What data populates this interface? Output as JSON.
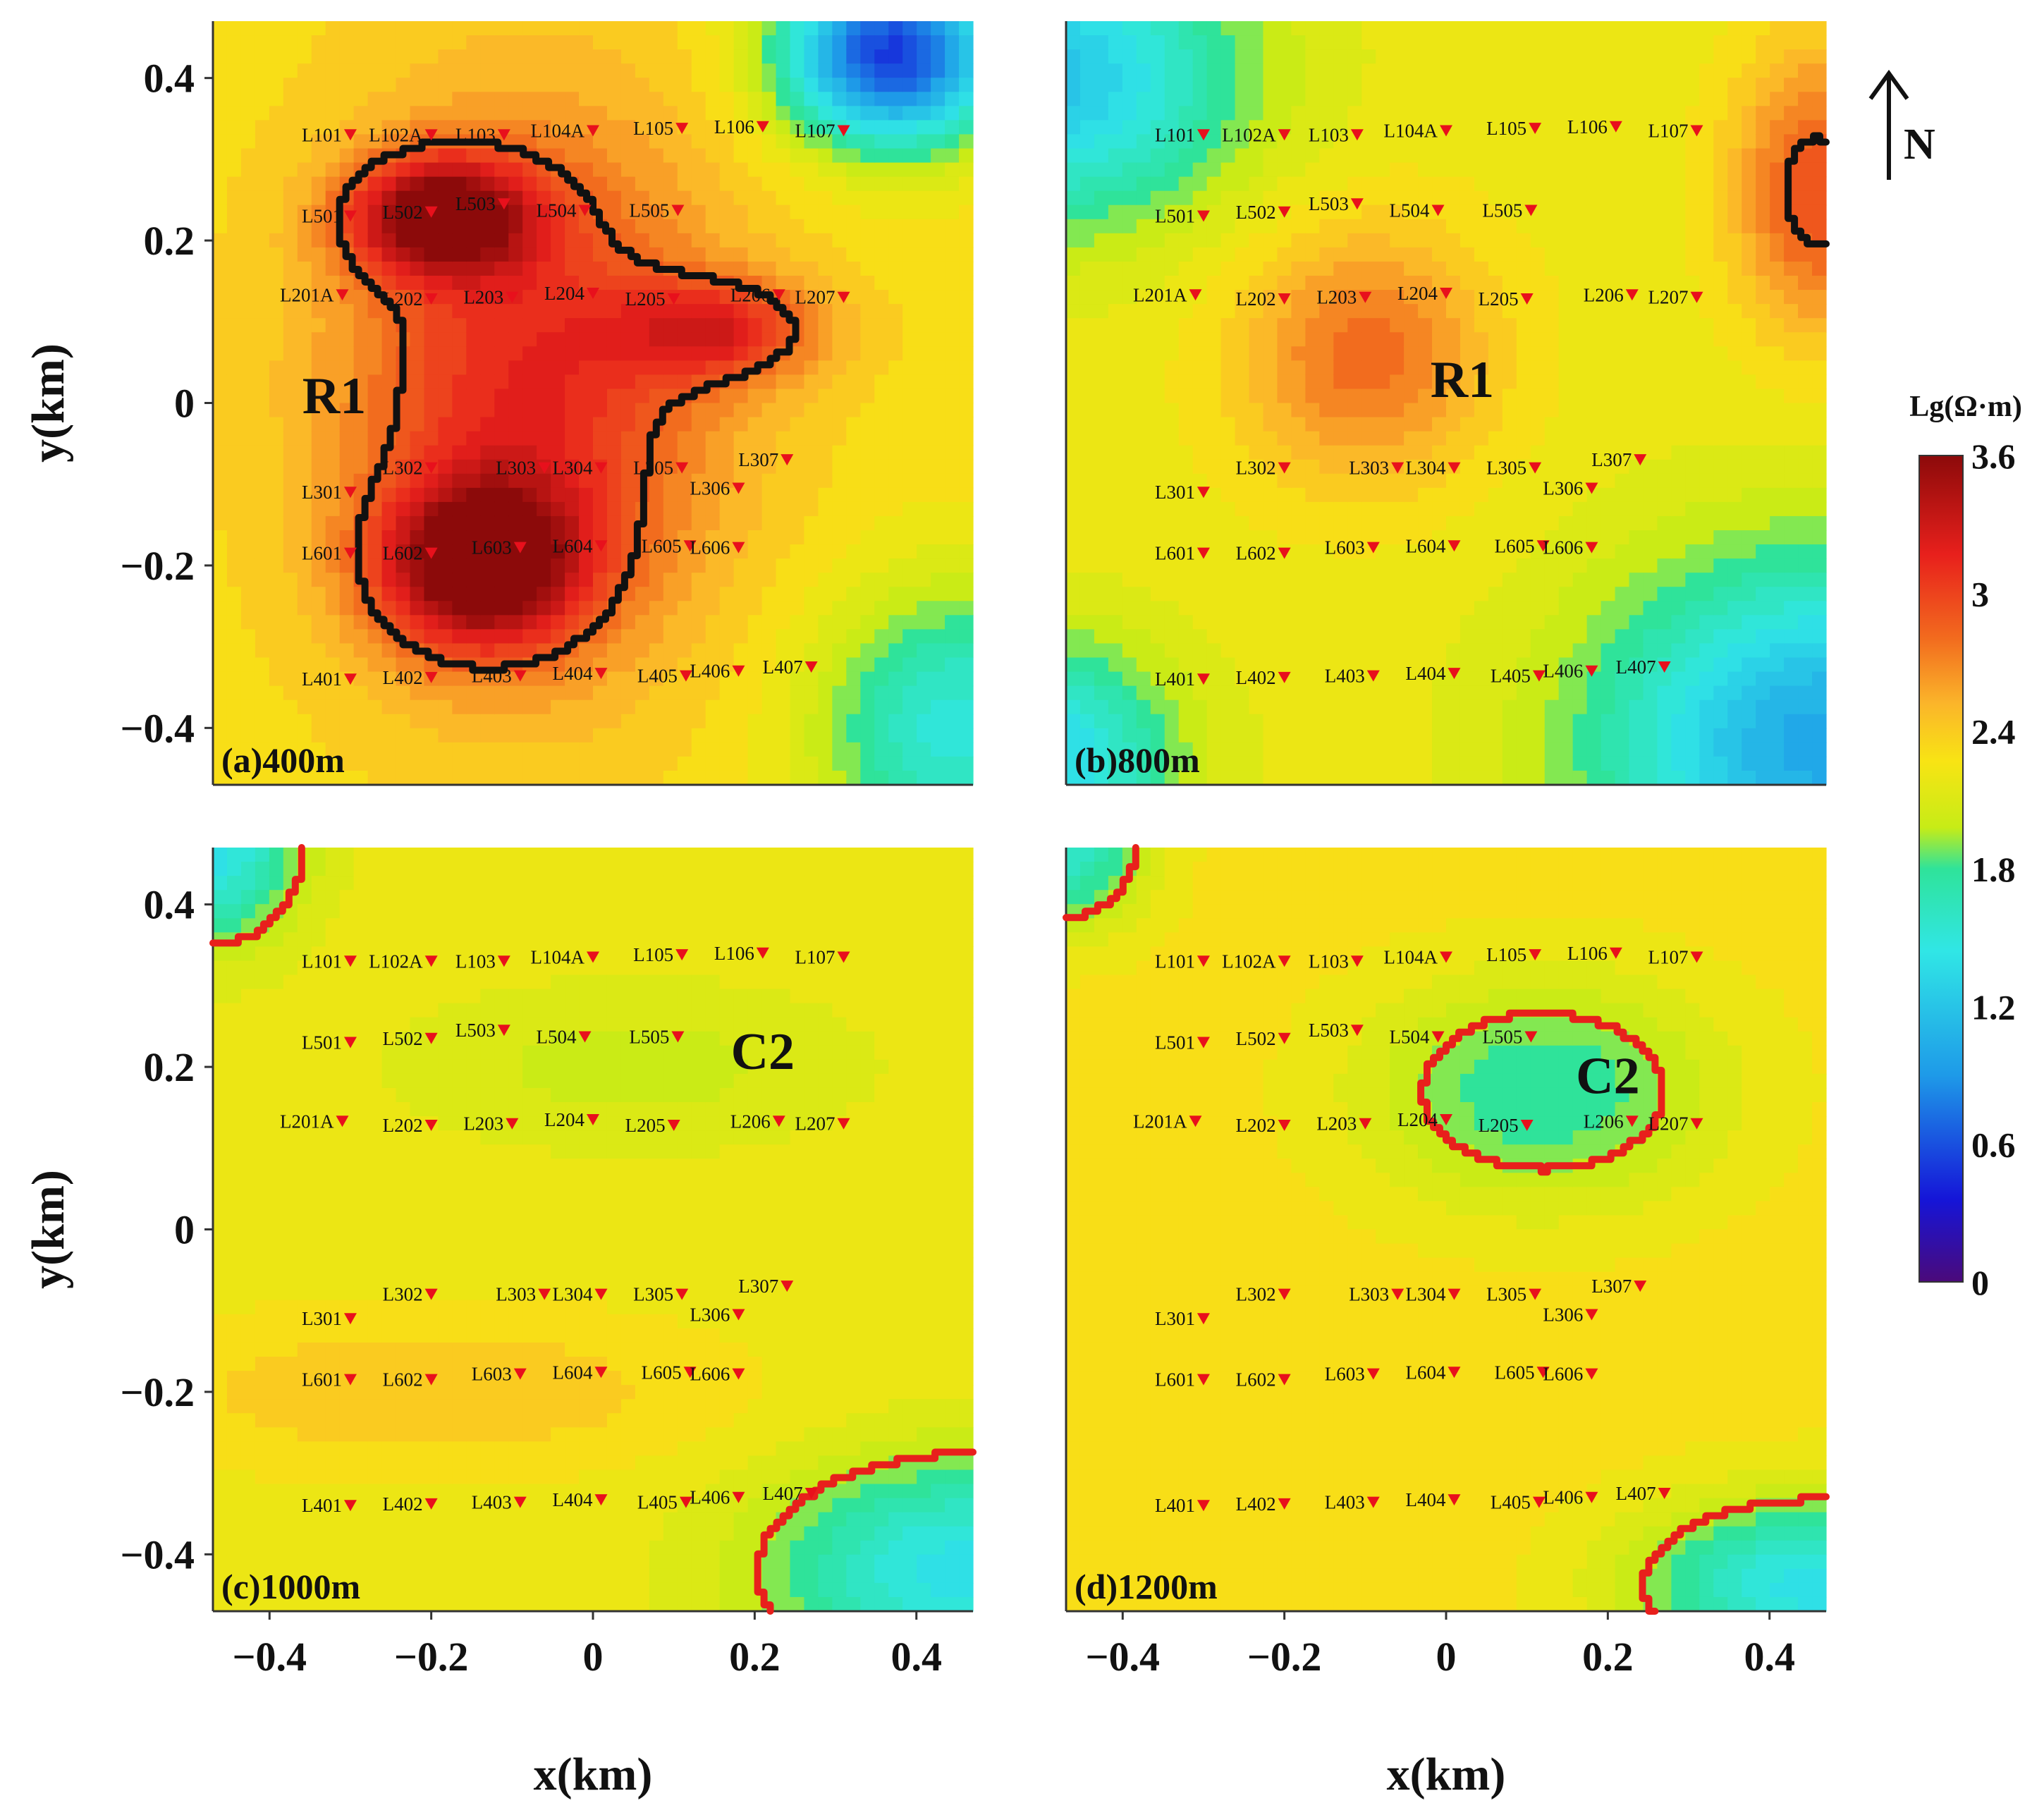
{
  "chart_data": {
    "type": "heatmap",
    "xlabel": "x(km)",
    "ylabel": "y(km)",
    "xlim": [
      -0.47,
      0.47
    ],
    "ylim": [
      -0.47,
      0.47
    ],
    "xticks": [
      "−0.4",
      "−0.2",
      "0",
      "0.2",
      "0.4"
    ],
    "yticks": [
      "0.4",
      "0.2",
      "0",
      "−0.2",
      "−0.4"
    ],
    "xtick_values": [
      -0.4,
      -0.2,
      0,
      0.2,
      0.4
    ],
    "ytick_values": [
      0.4,
      0.2,
      0,
      -0.2,
      -0.4
    ],
    "colorbar": {
      "title": "Lg(Ω·m)",
      "ticks": [
        "0",
        "0.6",
        "1.2",
        "1.8",
        "2.4",
        "3",
        "3.6"
      ],
      "tick_values": [
        0,
        0.6,
        1.2,
        1.8,
        2.4,
        3,
        3.6
      ],
      "range": [
        0,
        3.6
      ],
      "colors": [
        "#4b0a7a",
        "#1515d8",
        "#1e9ae8",
        "#30e6e6",
        "#2fe39a",
        "#c7ec16",
        "#f8e414",
        "#fbb52a",
        "#f26a1e",
        "#e8201c",
        "#8c0a0a"
      ]
    },
    "north_arrow": "N",
    "stations": [
      {
        "name": "L101",
        "x": -0.3,
        "y": 0.33
      },
      {
        "name": "L102A",
        "x": -0.2,
        "y": 0.33
      },
      {
        "name": "L103",
        "x": -0.11,
        "y": 0.33
      },
      {
        "name": "L104A",
        "x": 0.0,
        "y": 0.335
      },
      {
        "name": "L105",
        "x": 0.11,
        "y": 0.338
      },
      {
        "name": "L106",
        "x": 0.21,
        "y": 0.34
      },
      {
        "name": "L107",
        "x": 0.31,
        "y": 0.335
      },
      {
        "name": "L501",
        "x": -0.3,
        "y": 0.23
      },
      {
        "name": "L502",
        "x": -0.2,
        "y": 0.235
      },
      {
        "name": "L503",
        "x": -0.11,
        "y": 0.245
      },
      {
        "name": "L504",
        "x": -0.01,
        "y": 0.237
      },
      {
        "name": "L505",
        "x": 0.105,
        "y": 0.237
      },
      {
        "name": "L201A",
        "x": -0.31,
        "y": 0.133
      },
      {
        "name": "L202",
        "x": -0.2,
        "y": 0.128
      },
      {
        "name": "L203",
        "x": -0.1,
        "y": 0.13
      },
      {
        "name": "L204",
        "x": 0.0,
        "y": 0.135
      },
      {
        "name": "L205",
        "x": 0.1,
        "y": 0.128
      },
      {
        "name": "L206",
        "x": 0.23,
        "y": 0.133
      },
      {
        "name": "L207",
        "x": 0.31,
        "y": 0.13
      },
      {
        "name": "L302",
        "x": -0.2,
        "y": -0.08
      },
      {
        "name": "L303",
        "x": -0.06,
        "y": -0.08
      },
      {
        "name": "L304",
        "x": 0.01,
        "y": -0.08
      },
      {
        "name": "L305",
        "x": 0.11,
        "y": -0.08
      },
      {
        "name": "L307",
        "x": 0.24,
        "y": -0.07
      },
      {
        "name": "L301",
        "x": -0.3,
        "y": -0.11
      },
      {
        "name": "L306",
        "x": 0.18,
        "y": -0.105
      },
      {
        "name": "L601",
        "x": -0.3,
        "y": -0.185
      },
      {
        "name": "L602",
        "x": -0.2,
        "y": -0.185
      },
      {
        "name": "L603",
        "x": -0.09,
        "y": -0.178
      },
      {
        "name": "L604",
        "x": 0.01,
        "y": -0.176
      },
      {
        "name": "L605",
        "x": 0.12,
        "y": -0.176
      },
      {
        "name": "L606",
        "x": 0.18,
        "y": -0.178
      },
      {
        "name": "L401",
        "x": -0.3,
        "y": -0.34
      },
      {
        "name": "L402",
        "x": -0.2,
        "y": -0.338
      },
      {
        "name": "L403",
        "x": -0.09,
        "y": -0.336
      },
      {
        "name": "L404",
        "x": 0.01,
        "y": -0.333
      },
      {
        "name": "L405",
        "x": 0.115,
        "y": -0.336
      },
      {
        "name": "L406",
        "x": 0.18,
        "y": -0.33
      },
      {
        "name": "L407",
        "x": 0.27,
        "y": -0.325
      }
    ],
    "panels": [
      {
        "label": "(a)400m",
        "anomaly": "R1",
        "anomaly_pos": [
          -0.32,
          0.01
        ],
        "contour_color": "#111111",
        "background_value": 2.3,
        "blobs": [
          {
            "x": -0.08,
            "y": 0.02,
            "rx": 0.3,
            "ry": 0.42,
            "v": 3.15
          },
          {
            "x": -0.19,
            "y": 0.23,
            "rx": 0.14,
            "ry": 0.09,
            "v": 3.55
          },
          {
            "x": -0.14,
            "y": -0.2,
            "rx": 0.16,
            "ry": 0.13,
            "v": 3.55
          },
          {
            "x": 0.16,
            "y": 0.09,
            "rx": 0.16,
            "ry": 0.08,
            "v": 3.0
          },
          {
            "x": 0.37,
            "y": 0.43,
            "rx": 0.17,
            "ry": 0.14,
            "v": 0.5
          },
          {
            "x": 0.45,
            "y": -0.4,
            "rx": 0.22,
            "ry": 0.22,
            "v": 1.5
          }
        ]
      },
      {
        "label": "(b)800m",
        "anomaly": "R1",
        "anomaly_pos": [
          0.02,
          0.03
        ],
        "contour_color": "#111111",
        "background_value": 2.2,
        "blobs": [
          {
            "x": -0.1,
            "y": 0.06,
            "rx": 0.2,
            "ry": 0.2,
            "v": 2.8
          },
          {
            "x": 0.46,
            "y": 0.26,
            "rx": 0.13,
            "ry": 0.22,
            "v": 2.95
          },
          {
            "x": -0.5,
            "y": 0.4,
            "rx": 0.3,
            "ry": 0.22,
            "v": 1.2
          },
          {
            "x": 0.47,
            "y": -0.42,
            "rx": 0.35,
            "ry": 0.28,
            "v": 1.0
          },
          {
            "x": -0.5,
            "y": -0.44,
            "rx": 0.2,
            "ry": 0.18,
            "v": 1.3
          }
        ]
      },
      {
        "label": "(c)1000m",
        "anomaly": "C2",
        "anomaly_pos": [
          0.21,
          0.22
        ],
        "contour_color": "#e8201c",
        "background_value": 2.2,
        "blobs": [
          {
            "x": 0.05,
            "y": 0.2,
            "rx": 0.33,
            "ry": 0.12,
            "v": 2.0
          },
          {
            "x": -0.2,
            "y": -0.2,
            "rx": 0.45,
            "ry": 0.12,
            "v": 2.45
          },
          {
            "x": -0.47,
            "y": 0.47,
            "rx": 0.13,
            "ry": 0.14,
            "v": 1.4
          },
          {
            "x": 0.46,
            "y": -0.42,
            "rx": 0.3,
            "ry": 0.17,
            "v": 1.4
          }
        ]
      },
      {
        "label": "(d)1200m",
        "anomaly": "C2",
        "anomaly_pos": [
          0.2,
          0.19
        ],
        "contour_color": "#e8201c",
        "background_value": 2.3,
        "blobs": [
          {
            "x": 0.12,
            "y": 0.17,
            "rx": 0.28,
            "ry": 0.18,
            "v": 1.75
          },
          {
            "x": -0.47,
            "y": 0.47,
            "rx": 0.13,
            "ry": 0.13,
            "v": 1.6
          },
          {
            "x": 0.46,
            "y": -0.44,
            "rx": 0.28,
            "ry": 0.14,
            "v": 1.4
          }
        ]
      }
    ]
  }
}
